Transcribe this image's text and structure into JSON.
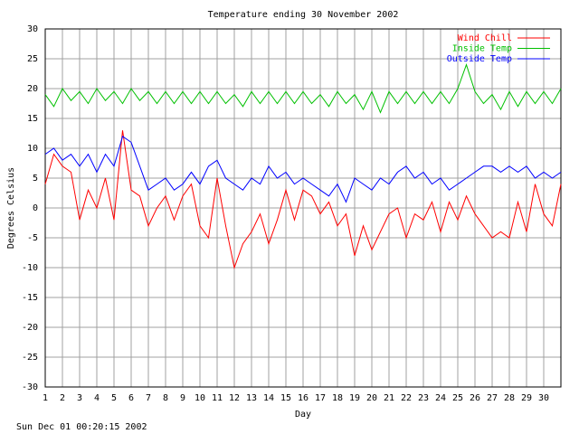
{
  "chart_data": {
    "type": "line",
    "title": "Temperature ending 30 November 2002",
    "x_label": "Day",
    "y_label": "Degrees Celsius",
    "xlim": [
      1,
      31
    ],
    "ylim": [
      -30,
      30
    ],
    "xticks": [
      1,
      2,
      3,
      4,
      5,
      6,
      7,
      8,
      9,
      10,
      11,
      12,
      13,
      14,
      15,
      16,
      17,
      18,
      19,
      20,
      21,
      22,
      23,
      24,
      25,
      26,
      27,
      28,
      29,
      30
    ],
    "yticks": [
      -30,
      -25,
      -20,
      -15,
      -10,
      -5,
      0,
      5,
      10,
      15,
      20,
      25,
      30
    ],
    "grid": true,
    "legend": "top-right",
    "x": [
      1,
      1.5,
      2,
      2.5,
      3,
      3.5,
      4,
      4.5,
      5,
      5.5,
      6,
      6.5,
      7,
      7.5,
      8,
      8.5,
      9,
      9.5,
      10,
      10.5,
      11,
      11.5,
      12,
      12.5,
      13,
      13.5,
      14,
      14.5,
      15,
      15.5,
      16,
      16.5,
      17,
      17.5,
      18,
      18.5,
      19,
      19.5,
      20,
      20.5,
      21,
      21.5,
      22,
      22.5,
      23,
      23.5,
      24,
      24.5,
      25,
      25.5,
      26,
      26.5,
      27,
      27.5,
      28,
      28.5,
      29,
      29.5,
      30,
      30.5,
      31
    ],
    "series": [
      {
        "name": "Wind Chill",
        "color": "#ff0000",
        "values": [
          4,
          9,
          7,
          6,
          -2,
          3,
          0,
          5,
          -2,
          13,
          3,
          2,
          -3,
          0,
          2,
          -2,
          2,
          4,
          -3,
          -5,
          5,
          -3,
          -10,
          -6,
          -4,
          -1,
          -6,
          -2,
          3,
          -2,
          3,
          2,
          -1,
          1,
          -3,
          -1,
          -8,
          -3,
          -7,
          -4,
          -1,
          0,
          -5,
          -1,
          -2,
          1,
          -4,
          1,
          -2,
          2,
          -1,
          -3,
          -5,
          -4,
          -5,
          1,
          -4,
          4,
          -1,
          -3,
          4
        ]
      },
      {
        "name": "Inside Temp",
        "color": "#00c000",
        "values": [
          19,
          17,
          20,
          18,
          19.5,
          17.5,
          20,
          18,
          19.5,
          17.5,
          20,
          18,
          19.5,
          17.5,
          19.5,
          17.5,
          19.5,
          17.5,
          19.5,
          17.5,
          19.5,
          17.5,
          19,
          17,
          19.5,
          17.5,
          19.5,
          17.5,
          19.5,
          17.5,
          19.5,
          17.5,
          19,
          17,
          19.5,
          17.5,
          19,
          16.5,
          19.5,
          16,
          19.5,
          17.5,
          19.5,
          17.5,
          19.5,
          17.5,
          19.5,
          17.5,
          20,
          24,
          19.5,
          17.5,
          19,
          16.5,
          19.5,
          17,
          19.5,
          17.5,
          19.5,
          17.5,
          20
        ]
      },
      {
        "name": "Outside Temp",
        "color": "#0000ff",
        "values": [
          9,
          10,
          8,
          9,
          7,
          9,
          6,
          9,
          7,
          12,
          11,
          7,
          3,
          4,
          5,
          3,
          4,
          6,
          4,
          7,
          8,
          5,
          4,
          3,
          5,
          4,
          7,
          5,
          6,
          4,
          5,
          4,
          3,
          2,
          4,
          1,
          5,
          4,
          3,
          5,
          4,
          6,
          7,
          5,
          6,
          4,
          5,
          3,
          4,
          5,
          6,
          7,
          7,
          6,
          7,
          6,
          7,
          5,
          6,
          5,
          6
        ]
      }
    ]
  },
  "footer": "Sun Dec 01 00:20:15 2002"
}
